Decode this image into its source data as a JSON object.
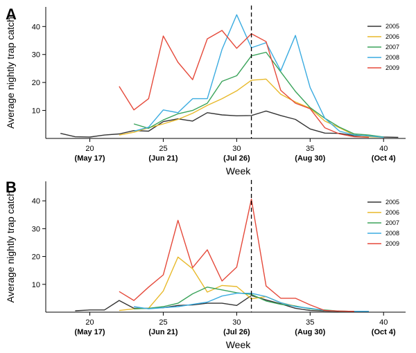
{
  "colors": {
    "2005": "#333333",
    "2006": "#e8b92a",
    "2007": "#3aa35a",
    "2008": "#3aabe0",
    "2009": "#e5493a"
  },
  "chart_data": [
    {
      "type": "line",
      "panel_label": "A",
      "xlabel": "Week",
      "ylabel": "Average nightly trap catch",
      "xlim": [
        17,
        41.5
      ],
      "ylim": [
        0,
        47
      ],
      "xticks": [
        {
          "value": 20,
          "label": "20",
          "sub": "(May 17)"
        },
        {
          "value": 25,
          "label": "25",
          "sub": "(Jun 21)"
        },
        {
          "value": 30,
          "label": "30",
          "sub": "(Jul 26)"
        },
        {
          "value": 35,
          "label": "35",
          "sub": "(Aug 30)"
        },
        {
          "value": 40,
          "label": "40",
          "sub": "(Oct 4)"
        }
      ],
      "yticks": [
        10,
        20,
        30,
        40
      ],
      "reference_line_x": 31,
      "legend_position": "top-right",
      "series": [
        {
          "name": "2005",
          "x": [
            18,
            19,
            20,
            21,
            22,
            23,
            24,
            25,
            26,
            27,
            28,
            29,
            30,
            31,
            32,
            33,
            34,
            35,
            36,
            37,
            38,
            39,
            40,
            41
          ],
          "y": [
            1.8,
            0.6,
            0.5,
            1.2,
            1.6,
            2.8,
            2.6,
            6.0,
            7.0,
            6.2,
            9.2,
            8.4,
            8.1,
            8.2,
            9.8,
            8.2,
            6.8,
            3.4,
            1.9,
            1.8,
            1.0,
            0.8,
            0.5,
            0.4
          ]
        },
        {
          "name": "2006",
          "x": [
            22,
            23,
            24,
            25,
            26,
            27,
            28,
            29,
            30,
            31,
            32,
            33,
            34,
            35,
            36,
            37,
            38,
            39,
            40
          ],
          "y": [
            1.2,
            2.2,
            3.8,
            5.2,
            6.8,
            9.0,
            11.8,
            14.2,
            17.0,
            20.8,
            21.2,
            15.8,
            13.0,
            10.8,
            6.2,
            3.8,
            1.2,
            0.6,
            0.4
          ]
        },
        {
          "name": "2007",
          "x": [
            23,
            24,
            25,
            26,
            27,
            28,
            29,
            30,
            31,
            32,
            33,
            34,
            35,
            36,
            37,
            38,
            39,
            40
          ],
          "y": [
            5.2,
            3.6,
            6.6,
            8.8,
            10.0,
            12.6,
            20.4,
            22.4,
            29.5,
            30.8,
            23.8,
            16.8,
            11.0,
            7.2,
            4.0,
            1.6,
            1.2,
            0.5
          ]
        },
        {
          "name": "2008",
          "x": [
            23,
            24,
            25,
            26,
            27,
            28,
            29,
            30,
            31,
            32,
            33,
            34,
            35,
            36,
            37,
            38,
            39,
            40
          ],
          "y": [
            2.6,
            4.0,
            10.2,
            9.2,
            14.2,
            14.2,
            31.8,
            44.2,
            32.4,
            34.2,
            24.2,
            36.8,
            18.2,
            7.2,
            2.6,
            1.2,
            0.9,
            0.4
          ]
        },
        {
          "name": "2009",
          "x": [
            22,
            23,
            24,
            25,
            26,
            27,
            28,
            29,
            30,
            31,
            32,
            33,
            34,
            35,
            36,
            37,
            38,
            39
          ],
          "y": [
            18.6,
            10.2,
            14.2,
            36.6,
            27.2,
            21.0,
            35.6,
            38.6,
            32.2,
            37.4,
            34.6,
            17.2,
            12.6,
            10.6,
            3.8,
            1.6,
            0.6,
            0.4
          ]
        }
      ]
    },
    {
      "type": "line",
      "panel_label": "B",
      "xlabel": "Week",
      "ylabel": "Average nightly trap catch",
      "xlim": [
        17,
        41.5
      ],
      "ylim": [
        0,
        47
      ],
      "xticks": [
        {
          "value": 20,
          "label": "20",
          "sub": "(May 17)"
        },
        {
          "value": 25,
          "label": "25",
          "sub": "(Jun 21)"
        },
        {
          "value": 30,
          "label": "30",
          "sub": "(Jul 26)"
        },
        {
          "value": 35,
          "label": "35",
          "sub": "(Aug 30)"
        },
        {
          "value": 40,
          "label": "40",
          "sub": "(Oct 4)"
        }
      ],
      "yticks": [
        10,
        20,
        30,
        40
      ],
      "reference_line_x": 31,
      "legend_position": "top-right",
      "series": [
        {
          "name": "2005",
          "x": [
            19,
            20,
            21,
            22,
            23,
            24,
            25,
            26,
            27,
            28,
            29,
            30,
            31,
            32,
            33,
            34,
            35,
            36,
            37,
            38
          ],
          "y": [
            0.5,
            0.8,
            0.8,
            4.2,
            1.4,
            1.4,
            1.6,
            2.4,
            2.6,
            3.2,
            3.2,
            2.4,
            6.0,
            4.4,
            3.0,
            1.4,
            0.6,
            0.4,
            0.3,
            0.3
          ]
        },
        {
          "name": "2006",
          "x": [
            22,
            23,
            24,
            25,
            26,
            27,
            28,
            29,
            30,
            31,
            32,
            33,
            34,
            35,
            36,
            37,
            38
          ],
          "y": [
            0.6,
            1.2,
            1.4,
            7.6,
            19.8,
            15.6,
            7.2,
            9.6,
            9.2,
            4.8,
            5.6,
            3.4,
            2.2,
            1.2,
            0.6,
            0.4,
            0.3
          ]
        },
        {
          "name": "2007",
          "x": [
            23,
            24,
            25,
            26,
            27,
            28,
            29,
            30,
            31,
            32,
            33,
            34,
            35,
            36,
            37,
            38
          ],
          "y": [
            1.2,
            1.4,
            2.0,
            3.2,
            6.6,
            9.0,
            8.0,
            7.0,
            6.4,
            4.0,
            2.8,
            2.2,
            1.2,
            0.8,
            0.4,
            0.3
          ]
        },
        {
          "name": "2008",
          "x": [
            23,
            24,
            25,
            26,
            27,
            28,
            29,
            30,
            31,
            32,
            33,
            34,
            35,
            36,
            37,
            38,
            39
          ],
          "y": [
            2.0,
            1.2,
            1.6,
            2.0,
            2.8,
            3.6,
            5.8,
            6.8,
            6.8,
            5.6,
            3.4,
            2.0,
            1.4,
            0.6,
            0.4,
            0.3,
            0.3
          ]
        },
        {
          "name": "2009",
          "x": [
            22,
            23,
            24,
            25,
            26,
            27,
            28,
            29,
            30,
            31,
            32,
            33,
            34,
            35,
            36,
            37,
            38
          ],
          "y": [
            7.4,
            4.2,
            9.0,
            13.4,
            33.0,
            16.0,
            22.4,
            11.2,
            16.2,
            40.6,
            9.4,
            5.0,
            5.0,
            2.6,
            0.6,
            0.4,
            0.3
          ]
        }
      ]
    }
  ]
}
